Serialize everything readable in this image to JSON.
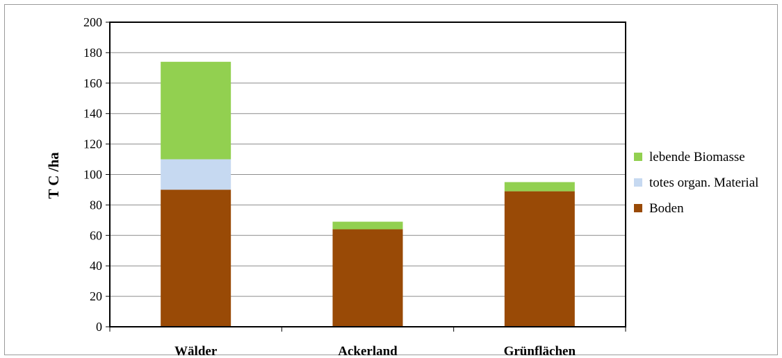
{
  "chart_data": {
    "type": "bar",
    "stacked": true,
    "categories": [
      "Wälder",
      "Ackerland",
      "Grünflächen"
    ],
    "series": [
      {
        "name": "Boden",
        "values": [
          90,
          64,
          89
        ],
        "color": "#994a06"
      },
      {
        "name": "totes organ. Material",
        "values": [
          20,
          0,
          0
        ],
        "color": "#c6d9f1"
      },
      {
        "name": "lebende Biomasse",
        "values": [
          64,
          5,
          6
        ],
        "color": "#92d050"
      }
    ],
    "title": "",
    "xlabel": "",
    "ylabel": "T C /ha",
    "ylim": [
      0,
      200
    ],
    "yticks": [
      0,
      20,
      40,
      60,
      80,
      100,
      120,
      140,
      160,
      180,
      200
    ],
    "grid": true,
    "legend_position": "right",
    "legend_order": [
      "lebende Biomasse",
      "totes organ. Material",
      "Boden"
    ]
  }
}
